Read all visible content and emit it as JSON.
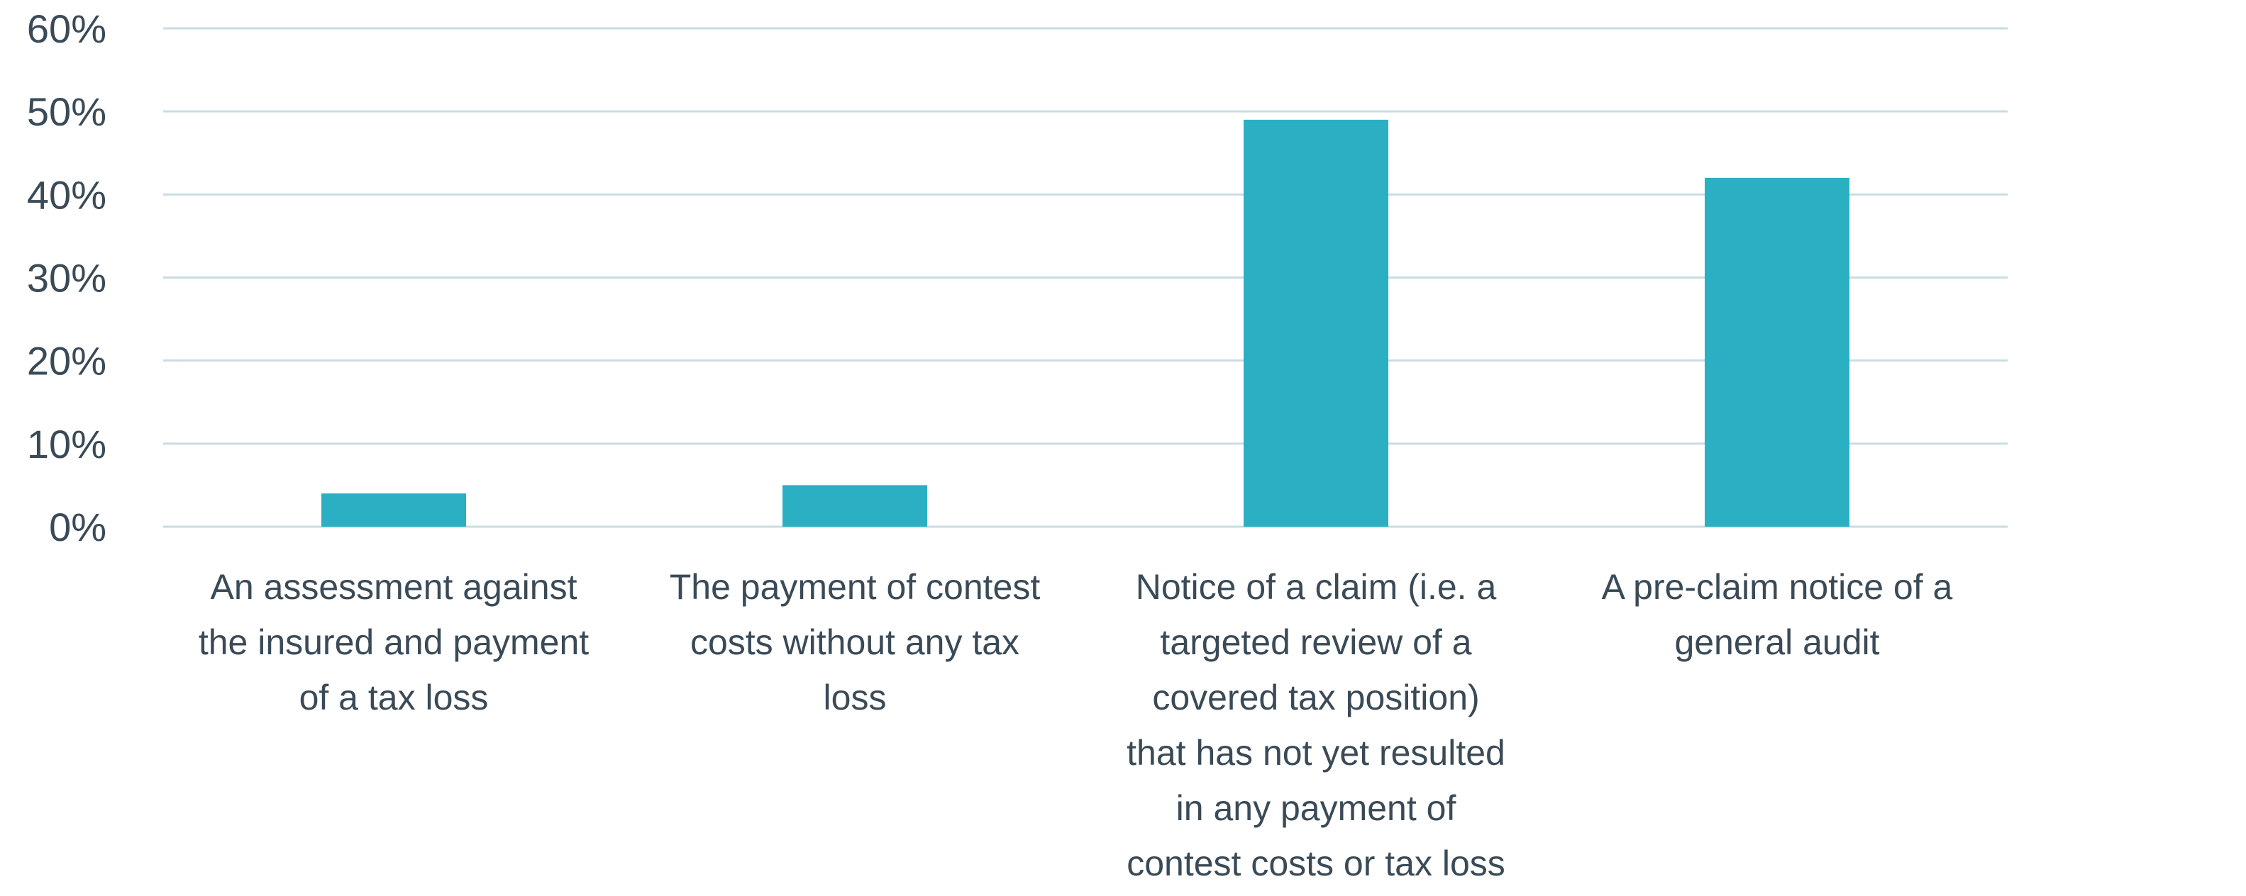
{
  "chart_data": {
    "type": "bar",
    "title": "",
    "xlabel": "",
    "ylabel": "",
    "ylim": [
      0,
      60
    ],
    "yticks": [
      "0%",
      "10%",
      "20%",
      "30%",
      "40%",
      "50%",
      "60%"
    ],
    "ytick_values": [
      0,
      10,
      20,
      30,
      40,
      50,
      60
    ],
    "grid": true,
    "legend": "none",
    "colors": {
      "bar": "#2aafc3",
      "grid": "#c9dde2",
      "text": "#3a4a57"
    },
    "categories": [
      [
        "An assessment against",
        "the insured and payment",
        "of a tax loss"
      ],
      [
        "The payment of contest",
        "costs without any tax",
        "loss"
      ],
      [
        "Notice of a claim (i.e. a",
        "targeted review of a",
        "covered tax position)",
        "that has not yet resulted",
        "in any payment of",
        "contest costs or tax loss"
      ],
      [
        "A pre-claim notice of a",
        "general audit"
      ]
    ],
    "values": [
      4,
      5,
      49,
      42
    ]
  }
}
